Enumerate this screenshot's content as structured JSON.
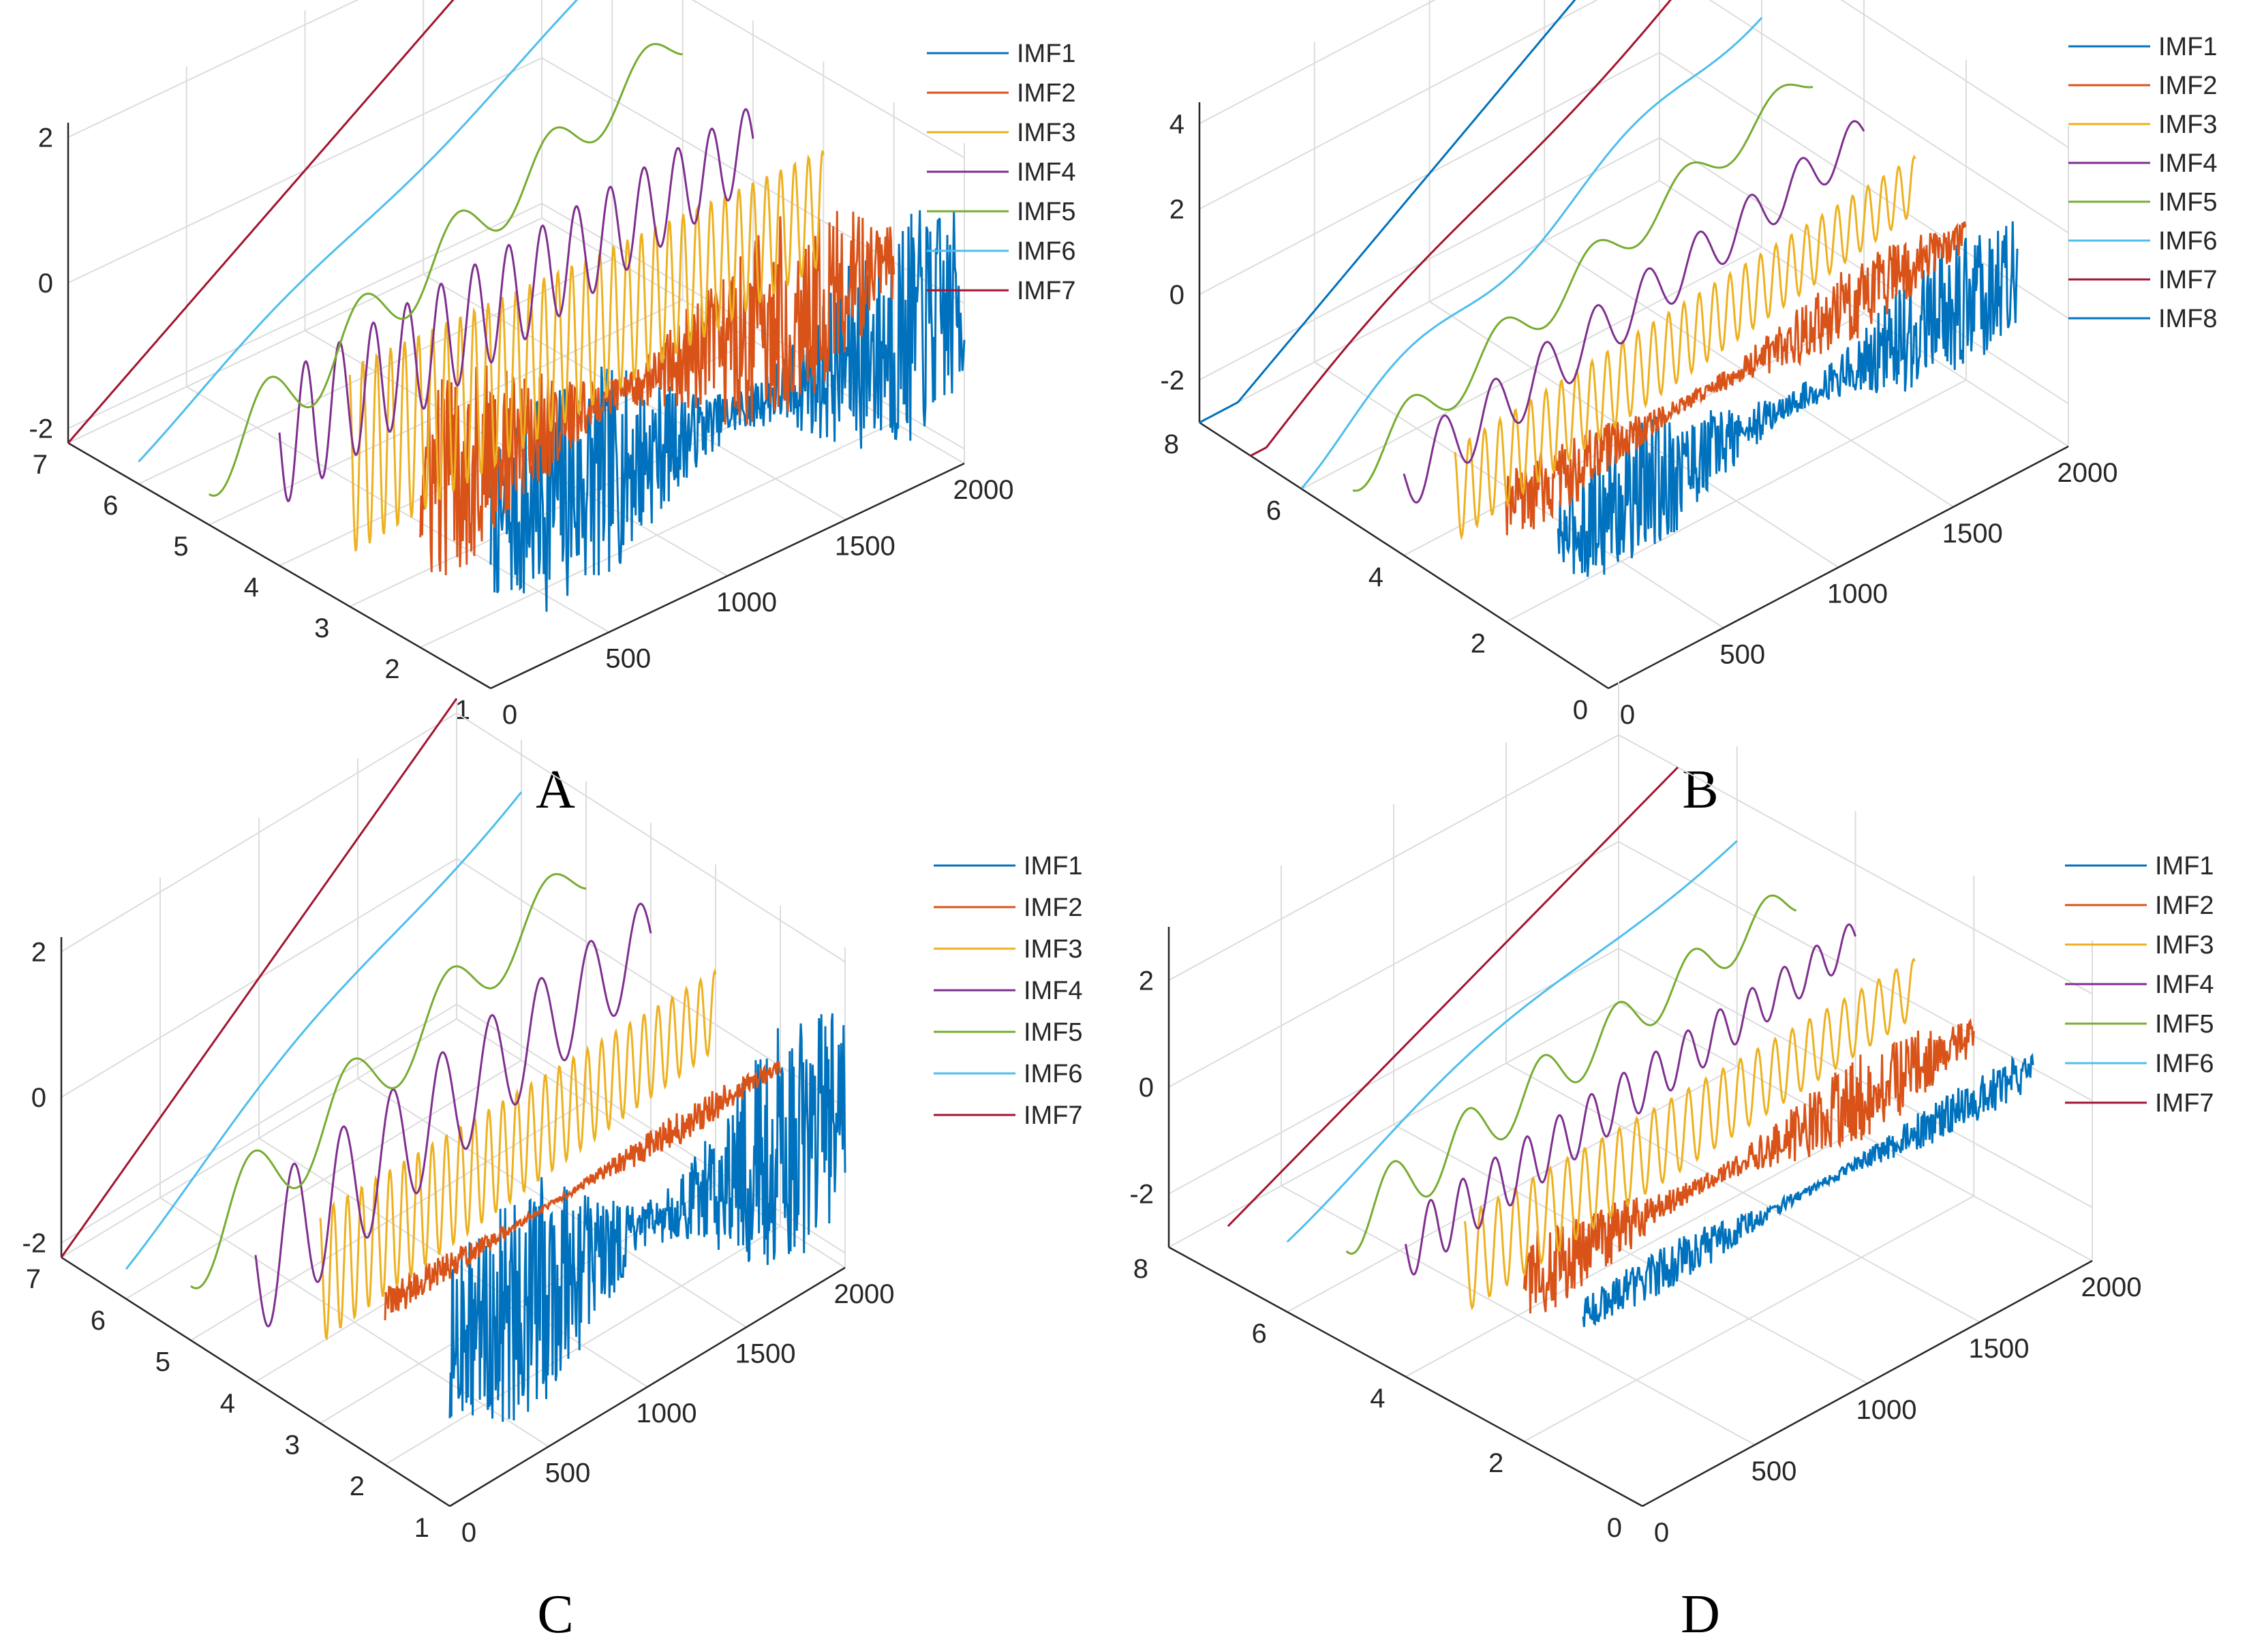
{
  "figure": {
    "description_labels": [
      "A",
      "B",
      "C",
      "D"
    ]
  },
  "chart_data": [
    {
      "type": "line",
      "panel_label": "A",
      "x_ticks": [
        "0",
        "500",
        "1000",
        "1500",
        "2000"
      ],
      "y_ticks": [
        "1",
        "2",
        "3",
        "4",
        "5",
        "6",
        "7"
      ],
      "z_ticks": [
        "-2",
        "0",
        "2"
      ],
      "xlim": [
        0,
        2000
      ],
      "ylim": [
        1,
        7
      ],
      "zlim": [
        -2.2,
        2.2
      ],
      "series": [
        {
          "name": "IMF1",
          "color": "#0072BD",
          "lane": 1,
          "noise": 1.0,
          "freq": 0,
          "amp": 1.6,
          "trend": 0.0
        },
        {
          "name": "IMF2",
          "color": "#D95319",
          "lane": 2,
          "noise": 0.8,
          "freq": 0,
          "amp": 1.8,
          "trend": 0.0
        },
        {
          "name": "IMF3",
          "color": "#EDB120",
          "lane": 3,
          "noise": 0.0,
          "freq": 34,
          "amp": 1.3,
          "trend": 0.2
        },
        {
          "name": "IMF4",
          "color": "#7E2F8E",
          "lane": 4,
          "noise": 0.0,
          "freq": 14,
          "amp": 0.9,
          "trend": 0.5
        },
        {
          "name": "IMF5",
          "color": "#77AC30",
          "lane": 5,
          "noise": 0.0,
          "freq": 5,
          "amp": 0.5,
          "trend": 1.4
        },
        {
          "name": "IMF6",
          "color": "#4DBEEE",
          "lane": 6,
          "noise": 0.0,
          "freq": 1.5,
          "amp": 0.1,
          "trend": 1.8
        },
        {
          "name": "IMF7",
          "color": "#A2142F",
          "lane": 7,
          "noise": 0.0,
          "freq": 0,
          "amp": 0.0,
          "trend": 2.2
        }
      ]
    },
    {
      "type": "line",
      "panel_label": "B",
      "x_ticks": [
        "0",
        "500",
        "1000",
        "1500",
        "2000"
      ],
      "y_ticks": [
        "0",
        "2",
        "4",
        "6",
        "8"
      ],
      "z_ticks": [
        "-2",
        "0",
        "2",
        "4"
      ],
      "xlim": [
        0,
        2000
      ],
      "ylim": [
        0,
        8
      ],
      "zlim": [
        -3,
        4.5
      ],
      "series": [
        {
          "name": "IMF1",
          "color": "#0072BD",
          "lane": 1,
          "noise": 1.0,
          "freq": 0,
          "amp": 1.6,
          "trend": 0.3
        },
        {
          "name": "IMF2",
          "color": "#D95319",
          "lane": 2,
          "noise": 0.7,
          "freq": 0,
          "amp": 1.3,
          "trend": 0.4
        },
        {
          "name": "IMF3",
          "color": "#EDB120",
          "lane": 3,
          "noise": 0.0,
          "freq": 30,
          "amp": 1.1,
          "trend": 0.8
        },
        {
          "name": "IMF4",
          "color": "#7E2F8E",
          "lane": 4,
          "noise": 0.0,
          "freq": 9,
          "amp": 0.8,
          "trend": 1.2
        },
        {
          "name": "IMF5",
          "color": "#77AC30",
          "lane": 5,
          "noise": 0.0,
          "freq": 5,
          "amp": 0.6,
          "trend": 1.8
        },
        {
          "name": "IMF6",
          "color": "#4DBEEE",
          "lane": 6,
          "noise": 0.0,
          "freq": 2,
          "amp": 0.4,
          "trend": 2.6
        },
        {
          "name": "IMF7",
          "color": "#A2142F",
          "lane": 7,
          "noise": 0.0,
          "freq": 1,
          "amp": 0.3,
          "trend": 3.2
        },
        {
          "name": "IMF8",
          "color": "#0072BD",
          "lane": 8,
          "noise": 0.0,
          "freq": 0,
          "amp": 0.0,
          "trend": 3.6
        }
      ]
    },
    {
      "type": "line",
      "panel_label": "C",
      "x_ticks": [
        "0",
        "500",
        "1000",
        "1500",
        "2000"
      ],
      "y_ticks": [
        "1",
        "2",
        "3",
        "4",
        "5",
        "6",
        "7"
      ],
      "z_ticks": [
        "-2",
        "0",
        "2"
      ],
      "xlim": [
        0,
        2000
      ],
      "ylim": [
        1,
        7
      ],
      "zlim": [
        -2.2,
        2.2
      ],
      "series": [
        {
          "name": "IMF1",
          "color": "#0072BD",
          "lane": 1,
          "noise": 1.0,
          "freq": 0,
          "amp": 1.7,
          "trend": 0.0
        },
        {
          "name": "IMF2",
          "color": "#D95319",
          "lane": 2,
          "noise": 0.4,
          "freq": 0,
          "amp": 0.6,
          "trend": 0.0
        },
        {
          "name": "IMF3",
          "color": "#EDB120",
          "lane": 3,
          "noise": 0.0,
          "freq": 28,
          "amp": 0.9,
          "trend": 0.2
        },
        {
          "name": "IMF4",
          "color": "#7E2F8E",
          "lane": 4,
          "noise": 0.0,
          "freq": 8,
          "amp": 1.0,
          "trend": 0.6
        },
        {
          "name": "IMF5",
          "color": "#77AC30",
          "lane": 5,
          "noise": 0.0,
          "freq": 4,
          "amp": 0.6,
          "trend": 1.0
        },
        {
          "name": "IMF6",
          "color": "#4DBEEE",
          "lane": 6,
          "noise": 0.0,
          "freq": 1,
          "amp": 0.2,
          "trend": 1.6
        },
        {
          "name": "IMF7",
          "color": "#A2142F",
          "lane": 7,
          "noise": 0.0,
          "freq": 0,
          "amp": 0.0,
          "trend": 2.2
        }
      ]
    },
    {
      "type": "line",
      "panel_label": "D",
      "x_ticks": [
        "0",
        "500",
        "1000",
        "1500",
        "2000"
      ],
      "y_ticks": [
        "0",
        "2",
        "4",
        "6",
        "8"
      ],
      "z_ticks": [
        "-2",
        "0",
        "2"
      ],
      "xlim": [
        0,
        2000
      ],
      "ylim": [
        0,
        8
      ],
      "zlim": [
        -3,
        3
      ],
      "series": [
        {
          "name": "IMF1",
          "color": "#0072BD",
          "lane": 1,
          "noise": 0.5,
          "freq": 0,
          "amp": 0.9,
          "trend": 0.0
        },
        {
          "name": "IMF2",
          "color": "#D95319",
          "lane": 2,
          "noise": 0.7,
          "freq": 0,
          "amp": 1.2,
          "trend": 0.0
        },
        {
          "name": "IMF3",
          "color": "#EDB120",
          "lane": 3,
          "noise": 0.0,
          "freq": 26,
          "amp": 0.9,
          "trend": 0.3
        },
        {
          "name": "IMF4",
          "color": "#7E2F8E",
          "lane": 4,
          "noise": 0.0,
          "freq": 14,
          "amp": 0.6,
          "trend": 0.6
        },
        {
          "name": "IMF5",
          "color": "#77AC30",
          "lane": 5,
          "noise": 0.0,
          "freq": 6,
          "amp": 0.6,
          "trend": 0.8
        },
        {
          "name": "IMF6",
          "color": "#4DBEEE",
          "lane": 6,
          "noise": 0.0,
          "freq": 1,
          "amp": 0.3,
          "trend": 1.4
        },
        {
          "name": "IMF7",
          "color": "#A2142F",
          "lane": 7,
          "noise": 0.0,
          "freq": 0,
          "amp": 0.0,
          "trend": 2.0
        }
      ]
    }
  ]
}
